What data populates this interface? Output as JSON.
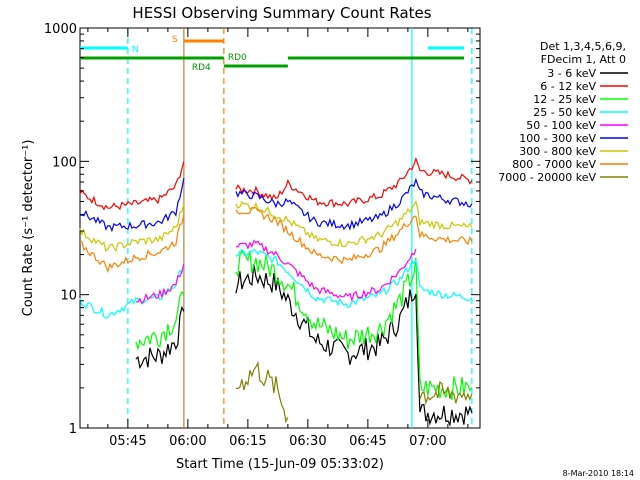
{
  "chart_data": {
    "type": "line",
    "title": "HESSI Observing Summary Count Rates",
    "xlabel": "Start Time (15-Jun-09 05:33:02)",
    "ylabel": "Count Rate (s⁻¹ detector⁻¹)",
    "y_scale": "log",
    "ylim": [
      1,
      1000
    ],
    "xlim": [
      "05:33:02",
      "07:13:02"
    ],
    "x_ticks": [
      "05:45",
      "06:00",
      "06:15",
      "06:30",
      "06:45",
      "07:00"
    ],
    "y_ticks": [
      "1",
      "10",
      "100",
      "1000"
    ],
    "timestamp": "8-Mar-2010 18:14",
    "legend_header": [
      "Det 1,3,4,5,6,9,",
      "FDecim 1, Att 0"
    ],
    "legend_position": "right",
    "flags": [
      {
        "label": "N",
        "color": "#00ffff",
        "segments": [
          [
            "05:33",
            "05:45"
          ],
          [
            "07:00",
            "07:14"
          ]
        ]
      },
      {
        "label": "S",
        "color": "#ff8000",
        "segments": [
          [
            "05:59",
            "06:09"
          ]
        ]
      },
      {
        "label": "RD0",
        "color": "#00a000",
        "segments": [
          [
            "05:33",
            "06:09"
          ],
          [
            "06:25",
            "07:14"
          ]
        ]
      },
      {
        "label": "RD4",
        "color": "#00a000",
        "segments": [
          [
            "06:09",
            "06:25"
          ]
        ]
      }
    ],
    "flag_lines": [
      {
        "time": "05:45",
        "color": "#00ffff",
        "style": "dashed"
      },
      {
        "time": "05:59",
        "color": "#c08040",
        "style": "solid"
      },
      {
        "time": "06:09",
        "color": "#ff8000",
        "style": "dashed"
      },
      {
        "time": "06:56",
        "color": "#00ffff",
        "style": "solid"
      },
      {
        "time": "07:11",
        "color": "#00ffff",
        "style": "dashed"
      }
    ],
    "x": [
      "05:33",
      "05:40",
      "05:47",
      "05:53",
      "05:57",
      "05:59",
      "06:09",
      "06:12",
      "06:17",
      "06:22",
      "06:25",
      "06:32",
      "06:40",
      "06:48",
      "06:53",
      "06:57",
      "06:58",
      "07:04",
      "07:11"
    ],
    "series": [
      {
        "name": "3 - 6 keV",
        "color": "#000000",
        "values": [
          null,
          null,
          3.3,
          3.5,
          4.5,
          7.5,
          null,
          12,
          14,
          12,
          9,
          4.5,
          3.6,
          4.2,
          6.5,
          12,
          1.3,
          1.3,
          1.3
        ]
      },
      {
        "name": "6 - 12 keV",
        "color": "#ff0000",
        "values": [
          58,
          45,
          48,
          52,
          65,
          100,
          null,
          62,
          60,
          52,
          68,
          50,
          48,
          55,
          70,
          100,
          85,
          80,
          72
        ]
      },
      {
        "name": "12 - 25 keV",
        "color": "#00ff00",
        "values": [
          null,
          null,
          4.5,
          5,
          6.5,
          10,
          null,
          17,
          18,
          15,
          12,
          6,
          4.6,
          5.5,
          9,
          16,
          2,
          2,
          2
        ]
      },
      {
        "name": "25 - 50 keV",
        "color": "#00ffff",
        "values": [
          9,
          7,
          9,
          9.5,
          12,
          17,
          null,
          20,
          21,
          18,
          15,
          9.5,
          8.5,
          10,
          13,
          19,
          11,
          10,
          9.5
        ]
      },
      {
        "name": "50 - 100 keV",
        "color": "#ff00ff",
        "values": [
          null,
          null,
          9,
          10,
          12,
          17,
          null,
          23,
          24,
          20,
          17,
          11,
          9.5,
          11,
          15,
          22,
          null,
          null,
          null
        ]
      },
      {
        "name": "100 - 300 keV",
        "color": "#0000ff",
        "values": [
          42,
          32,
          33,
          35,
          42,
          75,
          null,
          58,
          55,
          48,
          50,
          35,
          33,
          38,
          50,
          70,
          58,
          52,
          48
        ]
      },
      {
        "name": "300 - 800 keV",
        "color": "#c8c800",
        "values": [
          30,
          22,
          25,
          26,
          32,
          48,
          null,
          48,
          46,
          40,
          36,
          26,
          24,
          28,
          36,
          48,
          35,
          33,
          32
        ]
      },
      {
        "name": "800 - 7000 keV",
        "color": "#ff8000",
        "values": [
          24,
          16,
          19,
          21,
          25,
          40,
          null,
          43,
          42,
          36,
          30,
          20,
          18,
          22,
          30,
          40,
          28,
          26,
          25
        ]
      },
      {
        "name": "7000 - 20000 keV",
        "color": "#808000",
        "values": [
          null,
          null,
          null,
          null,
          null,
          1,
          null,
          2,
          2.8,
          2,
          1.2,
          null,
          null,
          null,
          null,
          null,
          1.8,
          1.8,
          1.8
        ]
      }
    ]
  }
}
